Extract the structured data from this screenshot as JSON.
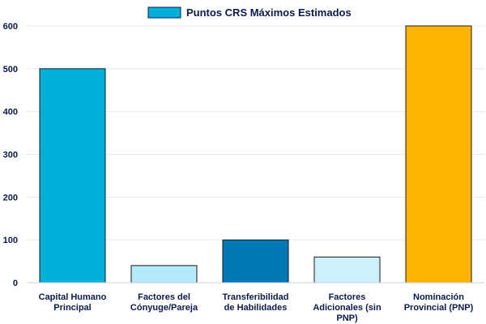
{
  "chart_data": {
    "type": "bar",
    "title": "",
    "xlabel": "",
    "ylabel": "",
    "categories": [
      [
        "Capital Humano",
        "Principal"
      ],
      [
        "Factores del",
        "Cónyuge/Pareja"
      ],
      [
        "Transferibilidad",
        "de Habilidades"
      ],
      [
        "Factores",
        "Adicionales (sin",
        "PNP)"
      ],
      [
        "Nominación",
        "Provincial (PNP)"
      ]
    ],
    "series": [
      {
        "name": "Puntos CRS Máximos Estimados",
        "values": [
          500,
          40,
          100,
          60,
          600
        ]
      }
    ],
    "bar_colors": [
      "#00b0d8",
      "#b3e9f8",
      "#0077b6",
      "#cdf1fb",
      "#ffb500"
    ],
    "legend_color": "#00b0d8",
    "ylim": [
      0,
      600
    ],
    "yticks": [
      0,
      100,
      200,
      300,
      400,
      500,
      600
    ],
    "grid": true,
    "legend_position": "top-center"
  }
}
